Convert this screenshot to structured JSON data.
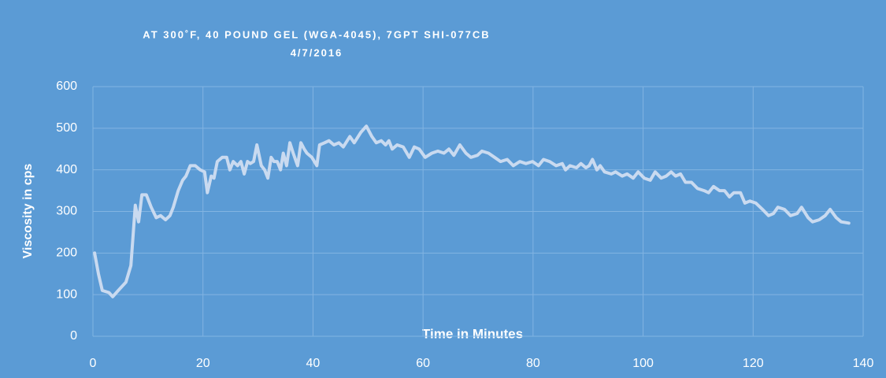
{
  "chart_data": {
    "type": "line",
    "title": "AT 300˚F, 40 POUND GEL (WGA-4045), 7GPT SHI-077CB",
    "subtitle": "4/7/2016",
    "xlabel": "Time in Minutes",
    "ylabel": "Viscosity in cps",
    "xlim": [
      0,
      140
    ],
    "xticks": [
      0,
      20,
      40,
      60,
      80,
      100,
      120,
      140
    ],
    "ylim": [
      0,
      600
    ],
    "yticks": [
      0,
      100,
      200,
      300,
      400,
      500,
      600
    ],
    "grid": true,
    "x": [
      0.3,
      1.0,
      1.7,
      2.9,
      3.6,
      4.6,
      6.0,
      6.9,
      7.7,
      8.3,
      8.9,
      9.7,
      10.6,
      11.5,
      12.3,
      13.2,
      14.0,
      14.6,
      15.5,
      16.3,
      16.9,
      17.7,
      18.6,
      19.5,
      20.3,
      20.8,
      21.5,
      22.0,
      22.6,
      23.5,
      24.3,
      24.9,
      25.5,
      26.3,
      26.9,
      27.5,
      28.1,
      28.6,
      29.2,
      29.8,
      30.6,
      31.2,
      31.8,
      32.4,
      32.9,
      33.5,
      34.1,
      34.6,
      35.2,
      35.8,
      36.4,
      37.2,
      37.8,
      38.4,
      38.9,
      39.8,
      40.7,
      41.2,
      42.1,
      42.9,
      43.8,
      44.7,
      45.5,
      46.7,
      47.5,
      48.7,
      49.7,
      50.7,
      51.5,
      52.4,
      53.2,
      53.8,
      54.4,
      55.3,
      56.4,
      57.5,
      58.4,
      59.3,
      60.4,
      61.6,
      62.7,
      63.8,
      64.7,
      65.6,
      66.7,
      67.8,
      68.7,
      69.9,
      70.7,
      71.9,
      73.0,
      74.1,
      75.3,
      76.4,
      77.6,
      78.7,
      79.9,
      81.0,
      81.9,
      83.0,
      84.2,
      85.3,
      85.9,
      86.7,
      87.9,
      88.7,
      89.6,
      90.2,
      90.8,
      91.6,
      92.2,
      93.0,
      94.2,
      95.0,
      96.2,
      97.1,
      98.2,
      99.1,
      100.2,
      101.3,
      102.2,
      103.3,
      104.2,
      105.1,
      105.9,
      106.8,
      107.7,
      108.8,
      109.9,
      111.1,
      111.9,
      112.8,
      113.9,
      114.8,
      115.7,
      116.5,
      117.7,
      118.5,
      119.4,
      120.5,
      121.7,
      122.8,
      123.7,
      124.5,
      125.7,
      126.8,
      128.0,
      128.8,
      130.0,
      130.8,
      132.0,
      133.1,
      134.0,
      135.1,
      136.0,
      137.4
    ],
    "series": [
      {
        "name": "Viscosity",
        "color": "#c9daf0",
        "values": [
          200,
          150,
          110,
          105,
          95,
          110,
          130,
          170,
          315,
          275,
          340,
          340,
          310,
          285,
          290,
          280,
          290,
          310,
          350,
          375,
          385,
          410,
          410,
          400,
          395,
          345,
          385,
          380,
          420,
          430,
          430,
          400,
          420,
          410,
          420,
          390,
          420,
          415,
          420,
          460,
          410,
          400,
          380,
          430,
          420,
          420,
          400,
          440,
          410,
          465,
          440,
          410,
          465,
          450,
          440,
          430,
          410,
          460,
          465,
          470,
          460,
          465,
          455,
          480,
          465,
          490,
          505,
          480,
          465,
          470,
          460,
          470,
          450,
          460,
          455,
          430,
          455,
          450,
          430,
          440,
          445,
          440,
          450,
          435,
          460,
          440,
          430,
          435,
          445,
          440,
          430,
          420,
          425,
          410,
          420,
          415,
          420,
          410,
          425,
          420,
          410,
          415,
          400,
          410,
          405,
          415,
          405,
          410,
          425,
          400,
          410,
          395,
          390,
          395,
          385,
          390,
          380,
          395,
          380,
          375,
          395,
          380,
          385,
          395,
          385,
          390,
          370,
          370,
          355,
          350,
          345,
          360,
          350,
          350,
          335,
          345,
          345,
          320,
          325,
          320,
          305,
          290,
          295,
          310,
          305,
          290,
          295,
          310,
          285,
          275,
          280,
          290,
          305,
          285,
          275,
          272
        ]
      }
    ]
  }
}
